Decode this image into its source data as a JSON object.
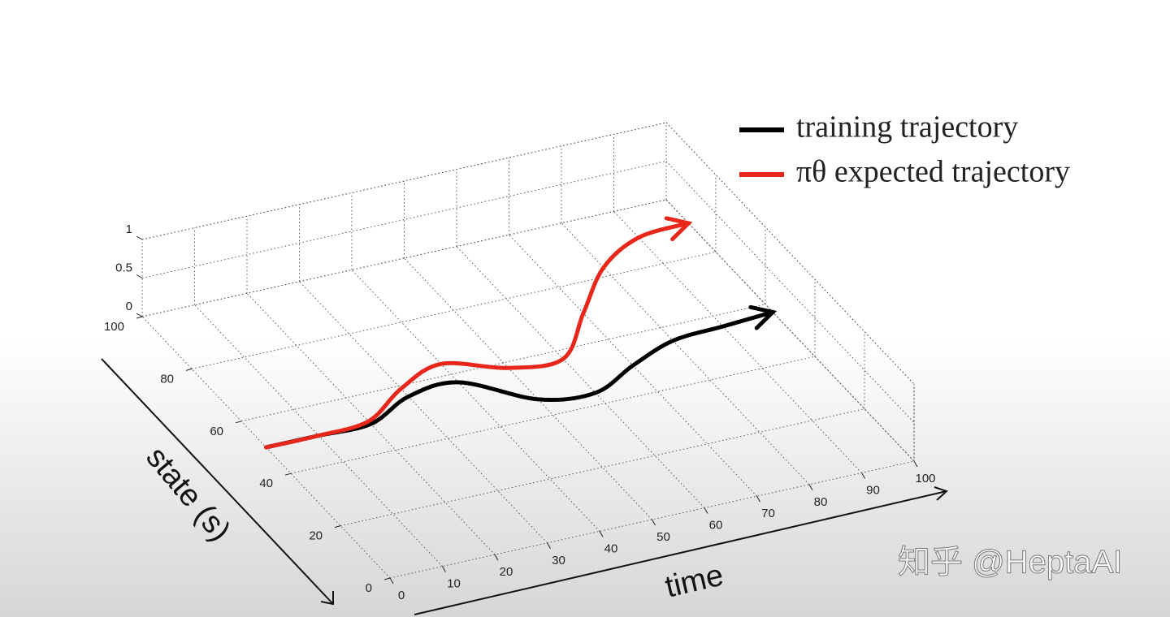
{
  "chart_data": {
    "type": "line3d",
    "x_label": "time",
    "y_label": "state (s)",
    "x": [
      0,
      10,
      20,
      30,
      40,
      50,
      60,
      70,
      80,
      90,
      100
    ],
    "series": [
      {
        "name": "training trajectory",
        "color": "#000000",
        "values": [
          50,
          50,
          50,
          56,
          57,
          46,
          44,
          50,
          55,
          56,
          57
        ]
      },
      {
        "name": "πθ expected trajectory",
        "color": "#e8261a",
        "values": [
          50,
          50,
          51,
          59,
          64,
          58,
          57,
          70,
          83,
          90,
          91
        ]
      }
    ],
    "xlim": [
      0,
      100
    ],
    "xticks": [
      0,
      10,
      20,
      30,
      40,
      50,
      60,
      70,
      80,
      90,
      100
    ],
    "ylim": [
      0,
      100
    ],
    "yticks": [
      0,
      20,
      40,
      60,
      80,
      100
    ],
    "zlim": [
      0,
      1
    ],
    "zticks": [
      0,
      0.5,
      1
    ],
    "grid": true,
    "legend": "upper right"
  },
  "watermark": "知乎 @HeptaAI"
}
